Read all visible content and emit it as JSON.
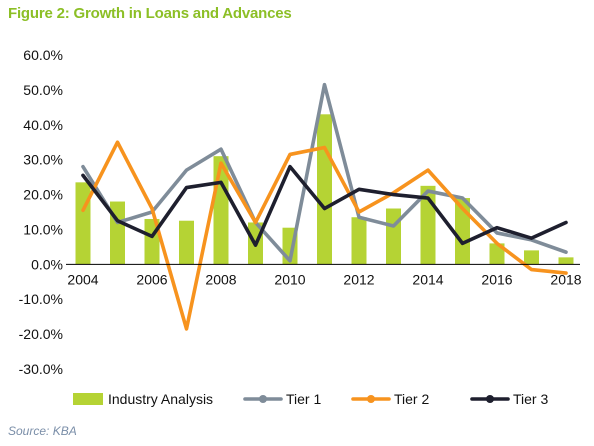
{
  "figure_title": "Figure 2: Growth in Loans and Advances",
  "source": "Source: KBA",
  "colors": {
    "industry": "#b5d334",
    "tier1": "#7f8c99",
    "tier2": "#f7931e",
    "tier3": "#1e1f2e",
    "title": "#8cbf26",
    "source": "#7a8ea8"
  },
  "chart_data": {
    "type": "bar",
    "title": "",
    "xlabel": "",
    "ylabel": "",
    "x": [
      2004,
      2005,
      2006,
      2007,
      2008,
      2009,
      2010,
      2011,
      2012,
      2013,
      2014,
      2015,
      2016,
      2017,
      2018
    ],
    "xticks": [
      2004,
      2006,
      2008,
      2010,
      2012,
      2014,
      2016,
      2018
    ],
    "xtick_labels": [
      "2004",
      "2006",
      "2008",
      "2010",
      "2012",
      "2014",
      "2016",
      "2018"
    ],
    "ylim": [
      -30,
      60
    ],
    "yticks": [
      -30,
      -20,
      -10,
      0,
      10,
      20,
      30,
      40,
      50,
      60
    ],
    "ytick_labels": [
      "-30.0%",
      "-20.0%",
      "-10.0%",
      "0.0%",
      "10.0%",
      "20.0%",
      "30.0%",
      "40.0%",
      "50.0%",
      "60.0%"
    ],
    "grid": false,
    "legend_position": "bottom",
    "series": [
      {
        "name": "Industry Analysis",
        "kind": "bar",
        "color": "#b5d334",
        "values": [
          23.5,
          18,
          13,
          12.5,
          31,
          12,
          10.5,
          43,
          13.5,
          16,
          22.5,
          19,
          6,
          4,
          2
        ]
      },
      {
        "name": "Tier 1",
        "kind": "line",
        "color": "#7f8c99",
        "values": [
          28,
          12,
          15,
          27,
          33,
          12,
          1,
          51.5,
          13.5,
          11,
          21,
          19,
          9,
          7,
          3.5
        ]
      },
      {
        "name": "Tier 2",
        "kind": "line",
        "color": "#f7931e",
        "values": [
          15.5,
          35,
          16,
          -18.5,
          29,
          12,
          31.5,
          33.5,
          15,
          20.5,
          27,
          16,
          6,
          -1.5,
          -2.5
        ]
      },
      {
        "name": "Tier 3",
        "kind": "line",
        "color": "#1e1f2e",
        "values": [
          25.5,
          12.5,
          8,
          22,
          23.5,
          5.5,
          28,
          16,
          21.5,
          20,
          19,
          6,
          10.5,
          7.5,
          12
        ]
      }
    ]
  }
}
